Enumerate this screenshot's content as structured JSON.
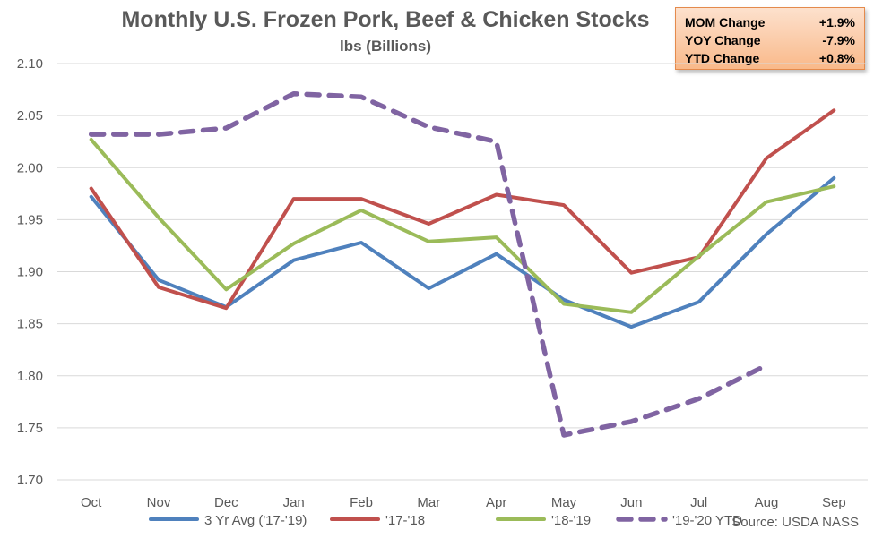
{
  "header": {
    "title": "Monthly U.S. Frozen Pork, Beef & Chicken Stocks",
    "subtitle": "lbs (Billions)"
  },
  "stats_box": {
    "rows": [
      {
        "label": "MOM Change",
        "value": "+1.9%"
      },
      {
        "label": "YOY Change",
        "value": "-7.9%"
      },
      {
        "label": "YTD Change",
        "value": "+0.8%"
      }
    ]
  },
  "source_note": "Source: USDA NASS",
  "chart_data": {
    "type": "line",
    "title": "Monthly U.S. Frozen Pork, Beef & Chicken Stocks",
    "subtitle": "lbs (Billions)",
    "xlabel": "",
    "ylabel": "",
    "categories": [
      "Oct",
      "Nov",
      "Dec",
      "Jan",
      "Feb",
      "Mar",
      "Apr",
      "May",
      "Jun",
      "Jul",
      "Aug",
      "Sep"
    ],
    "ylim": [
      1.7,
      2.1
    ],
    "yticks": [
      "1.70",
      "1.75",
      "1.80",
      "1.85",
      "1.90",
      "1.95",
      "2.00",
      "2.05",
      "2.10"
    ],
    "grid": true,
    "legend_position": "bottom",
    "series": [
      {
        "name": "3 Yr Avg ('17-'19)",
        "color": "#4f81bd",
        "dashed": false,
        "values": [
          1.972,
          1.892,
          1.866,
          1.911,
          1.928,
          1.884,
          1.917,
          1.873,
          1.847,
          1.871,
          1.936,
          1.99
        ]
      },
      {
        "name": "'17-'18",
        "color": "#c0504d",
        "dashed": false,
        "values": [
          1.98,
          1.885,
          1.865,
          1.97,
          1.97,
          1.946,
          1.974,
          1.964,
          1.899,
          1.914,
          2.009,
          2.055
        ]
      },
      {
        "name": "'18-'19",
        "color": "#9bbb59",
        "dashed": false,
        "values": [
          2.027,
          1.952,
          1.883,
          1.927,
          1.959,
          1.929,
          1.933,
          1.869,
          1.861,
          1.915,
          1.967,
          1.982
        ]
      },
      {
        "name": "'19-'20 YTD",
        "color": "#8064a2",
        "dashed": true,
        "values": [
          2.032,
          2.032,
          2.038,
          2.071,
          2.068,
          2.039,
          2.025,
          1.743,
          1.756,
          1.778,
          1.81,
          null
        ]
      }
    ]
  }
}
